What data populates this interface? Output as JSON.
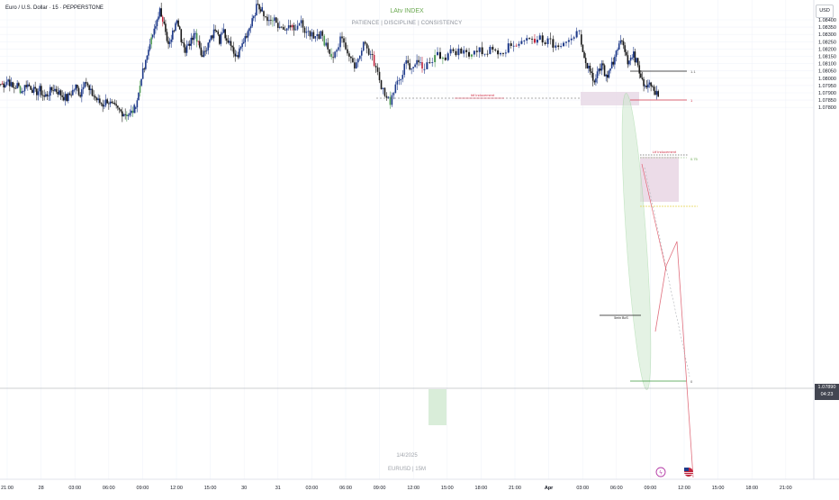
{
  "header": {
    "symbol": "Euro / U.S. Dollar · 15 · PEPPERSTONE",
    "currency": "USD"
  },
  "watermark": {
    "title": "LAtv INDEX",
    "subtitle": "PATIENCE | DISCIPLINE | CONSISTENCY",
    "date": "1/4/2025",
    "pair": "EURUSD | 15M"
  },
  "price_tag": {
    "price": "1.07890",
    "countdown": "04:23"
  },
  "colors": {
    "bull_candle": "#1e3a8a",
    "bear_candle": "#1a1a1a",
    "red_candle": "#c0243c",
    "green_candle": "#4f9a55",
    "grid": "#f0f3fa",
    "axis_text": "#131722"
  },
  "annotations": {
    "htf_inducement": "htf inducement",
    "ltf_inducement": "Ltf inducement",
    "bos": "5min BoS",
    "fib_1_1": "1.1",
    "fib_1": "1",
    "fib_075": "0.75",
    "fib_0": "0"
  },
  "chart_data": {
    "type": "candlestick",
    "ylim": [
      1.0775,
      1.0843
    ],
    "y_ticks": [
      "1.08400",
      "1.08350",
      "1.08300",
      "1.08250",
      "1.08200",
      "1.08150",
      "1.08100",
      "1.08050",
      "1.08000",
      "1.07950",
      "1.07900",
      "1.07850",
      "1.07800"
    ],
    "x_ticks": [
      "21:00",
      "28",
      "03:00",
      "06:00",
      "09:00",
      "12:00",
      "15:00",
      "30",
      "31",
      "03:00",
      "06:00",
      "09:00",
      "12:00",
      "15:00",
      "18:00",
      "21:00",
      "Apr",
      "03:00",
      "06:00",
      "09:00",
      "12:00",
      "15:00",
      "18:00",
      "21:00"
    ],
    "bold_x_ticks": [
      "Apr"
    ],
    "series": [
      {
        "segment": "pre-weekend",
        "closes": [
          1.0796,
          1.0799,
          1.0793,
          1.0795,
          1.0791,
          1.0796,
          1.0794,
          1.079,
          1.0792,
          1.0787,
          1.079,
          1.0793,
          1.0791,
          1.0788,
          1.0786,
          1.079,
          1.0794,
          1.0789,
          1.08,
          1.0791,
          1.0788,
          1.0784,
          1.0782,
          1.0785,
          1.0781,
          1.0779,
          1.0777,
          1.0776,
          1.0775,
          1.0779
        ]
      },
      {
        "segment": "rally",
        "closes": [
          1.079,
          1.0804,
          1.0818,
          1.0829,
          1.0838,
          1.0846,
          1.0835,
          1.0822,
          1.0831,
          1.084,
          1.0827,
          1.0819,
          1.0824,
          1.0831,
          1.0826,
          1.0815,
          1.0822,
          1.0829,
          1.0833,
          1.0826,
          1.0831,
          1.0825,
          1.0819,
          1.0814,
          1.0821,
          1.0828,
          1.0835,
          1.0844,
          1.085,
          1.0846
        ]
      },
      {
        "segment": "range-high",
        "closes": [
          1.0839,
          1.0842,
          1.0836,
          1.0833,
          1.0837,
          1.0835,
          1.0839,
          1.0833,
          1.083,
          1.0826,
          1.0831,
          1.0822,
          1.0812,
          1.0821,
          1.0829,
          1.0818,
          1.0808,
          1.0813,
          1.0825,
          1.0818,
          1.0811,
          1.0798,
          1.079,
          1.0784,
          1.0793,
          1.0802,
          1.081,
          1.0805,
          1.0814,
          1.0806
        ]
      },
      {
        "segment": "recovery",
        "closes": [
          1.0812,
          1.0816,
          1.0815,
          1.0819,
          1.0818,
          1.0817,
          1.0819,
          1.0818,
          1.082,
          1.0819,
          1.0821,
          1.0824,
          1.0827,
          1.0826,
          1.0828,
          1.0825,
          1.0822,
          1.0826,
          1.0829,
          1.083
        ]
      },
      {
        "segment": "apr-session",
        "closes": [
          1.0815,
          1.0806,
          1.0798,
          1.0804,
          1.081,
          1.0801,
          1.0806,
          1.0814,
          1.0826,
          1.0822,
          1.081,
          1.0817,
          1.0812,
          1.0802,
          1.0794,
          1.0797,
          1.0793,
          1.0789
        ]
      }
    ],
    "levels": [
      {
        "name": "htf inducement",
        "price": 1.0829
      },
      {
        "name": "1.1",
        "price": 1.08335
      },
      {
        "name": "1",
        "price": 1.08287
      },
      {
        "name": "0.75",
        "price": 1.08218
      },
      {
        "name": "0",
        "price": 1.079
      },
      {
        "name": "5min BoS",
        "price": 1.0799
      },
      {
        "name": "current",
        "price": 1.0789
      }
    ]
  }
}
